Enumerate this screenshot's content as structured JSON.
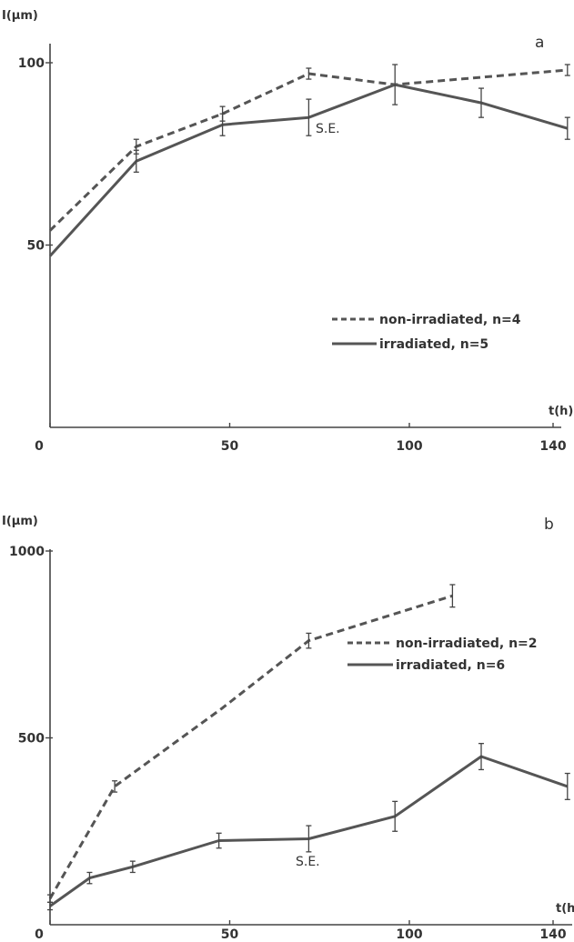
{
  "chart_data": [
    {
      "type": "line",
      "panel_label": "a",
      "ylabel": "I(µm)",
      "xlabel": "t(h)",
      "xlim": [
        0,
        140
      ],
      "ylim": [
        0,
        105
      ],
      "xticks": [
        0,
        50,
        100,
        140
      ],
      "yticks": [
        50,
        100
      ],
      "annotation": "S.E.",
      "legend": "right",
      "series": [
        {
          "name": "non-irradiated, n=4",
          "style": "dashed",
          "x": [
            0,
            24,
            48,
            72,
            96,
            120,
            144
          ],
          "y": [
            54,
            77,
            86,
            97,
            94,
            96,
            98
          ],
          "err": [
            0,
            2,
            2,
            1.5,
            0,
            0,
            1.5
          ]
        },
        {
          "name": "irradiated, n=5",
          "style": "solid",
          "x": [
            0,
            12,
            24,
            48,
            72,
            96,
            120,
            144
          ],
          "y": [
            47,
            60,
            73,
            83,
            85,
            94,
            89,
            82
          ],
          "err": [
            0,
            0,
            3,
            3,
            5,
            5.5,
            4,
            3
          ]
        }
      ]
    },
    {
      "type": "line",
      "panel_label": "b",
      "ylabel": "I(µm)",
      "xlabel": "t(h)",
      "xlim": [
        0,
        140
      ],
      "ylim": [
        0,
        1000
      ],
      "xticks": [
        0,
        50,
        100,
        140
      ],
      "yticks": [
        500,
        1000
      ],
      "annotation": "S.E.",
      "legend": "right",
      "series": [
        {
          "name": "non-irradiated, n=2",
          "style": "dashed",
          "x": [
            0,
            18,
            48,
            72,
            112
          ],
          "y": [
            70,
            370,
            580,
            760,
            880
          ],
          "err": [
            10,
            15,
            0,
            20,
            30
          ]
        },
        {
          "name": "irradiated, n=6",
          "style": "solid",
          "x": [
            0,
            11,
            23,
            47,
            72,
            96,
            120,
            144
          ],
          "y": [
            50,
            125,
            155,
            225,
            230,
            290,
            450,
            370
          ],
          "err": [
            10,
            15,
            15,
            20,
            35,
            40,
            35,
            35
          ]
        }
      ]
    }
  ]
}
